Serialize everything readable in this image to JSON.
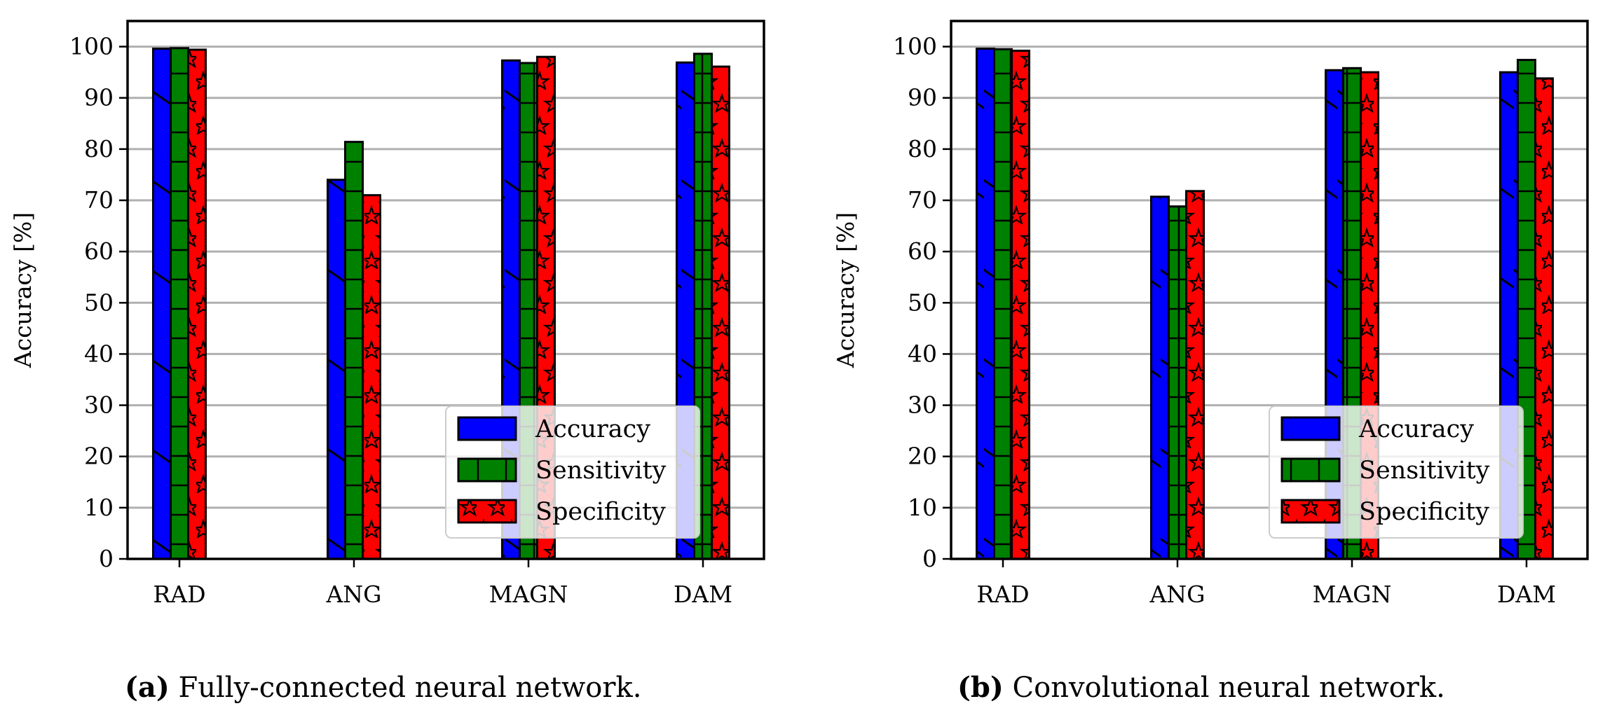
{
  "chart_data": [
    {
      "type": "bar",
      "caption_label": "(a)",
      "caption_text": "Fully-connected neural network.",
      "xlabel": "",
      "ylabel": "Accuracy [%]",
      "ylim": [
        0,
        105
      ],
      "yticks": [
        0,
        10,
        20,
        30,
        40,
        50,
        60,
        70,
        80,
        90,
        100
      ],
      "grid": true,
      "legend_position": "lower-right",
      "categories": [
        "RAD",
        "ANG",
        "MAGN",
        "DAM"
      ],
      "series": [
        {
          "name": "Accuracy",
          "color": "#0000ff",
          "hatch": "diagonal",
          "values": [
            99.6,
            74.0,
            97.3,
            96.9
          ]
        },
        {
          "name": "Sensitivity",
          "color": "#008000",
          "hatch": "grid",
          "values": [
            99.7,
            81.4,
            96.8,
            98.6
          ]
        },
        {
          "name": "Specificity",
          "color": "#ff0000",
          "hatch": "stars",
          "values": [
            99.4,
            71.0,
            98.0,
            96.1
          ]
        }
      ]
    },
    {
      "type": "bar",
      "caption_label": "(b)",
      "caption_text": "Convolutional neural network.",
      "xlabel": "",
      "ylabel": "Accuracy [%]",
      "ylim": [
        0,
        105
      ],
      "yticks": [
        0,
        10,
        20,
        30,
        40,
        50,
        60,
        70,
        80,
        90,
        100
      ],
      "grid": true,
      "legend_position": "lower-right",
      "categories": [
        "RAD",
        "ANG",
        "MAGN",
        "DAM"
      ],
      "series": [
        {
          "name": "Accuracy",
          "color": "#0000ff",
          "hatch": "diagonal",
          "values": [
            99.6,
            70.7,
            95.4,
            95.0
          ]
        },
        {
          "name": "Sensitivity",
          "color": "#008000",
          "hatch": "grid",
          "values": [
            99.5,
            68.8,
            95.8,
            97.4
          ]
        },
        {
          "name": "Specificity",
          "color": "#ff0000",
          "hatch": "stars",
          "values": [
            99.2,
            71.8,
            95.0,
            93.8
          ]
        }
      ]
    }
  ]
}
